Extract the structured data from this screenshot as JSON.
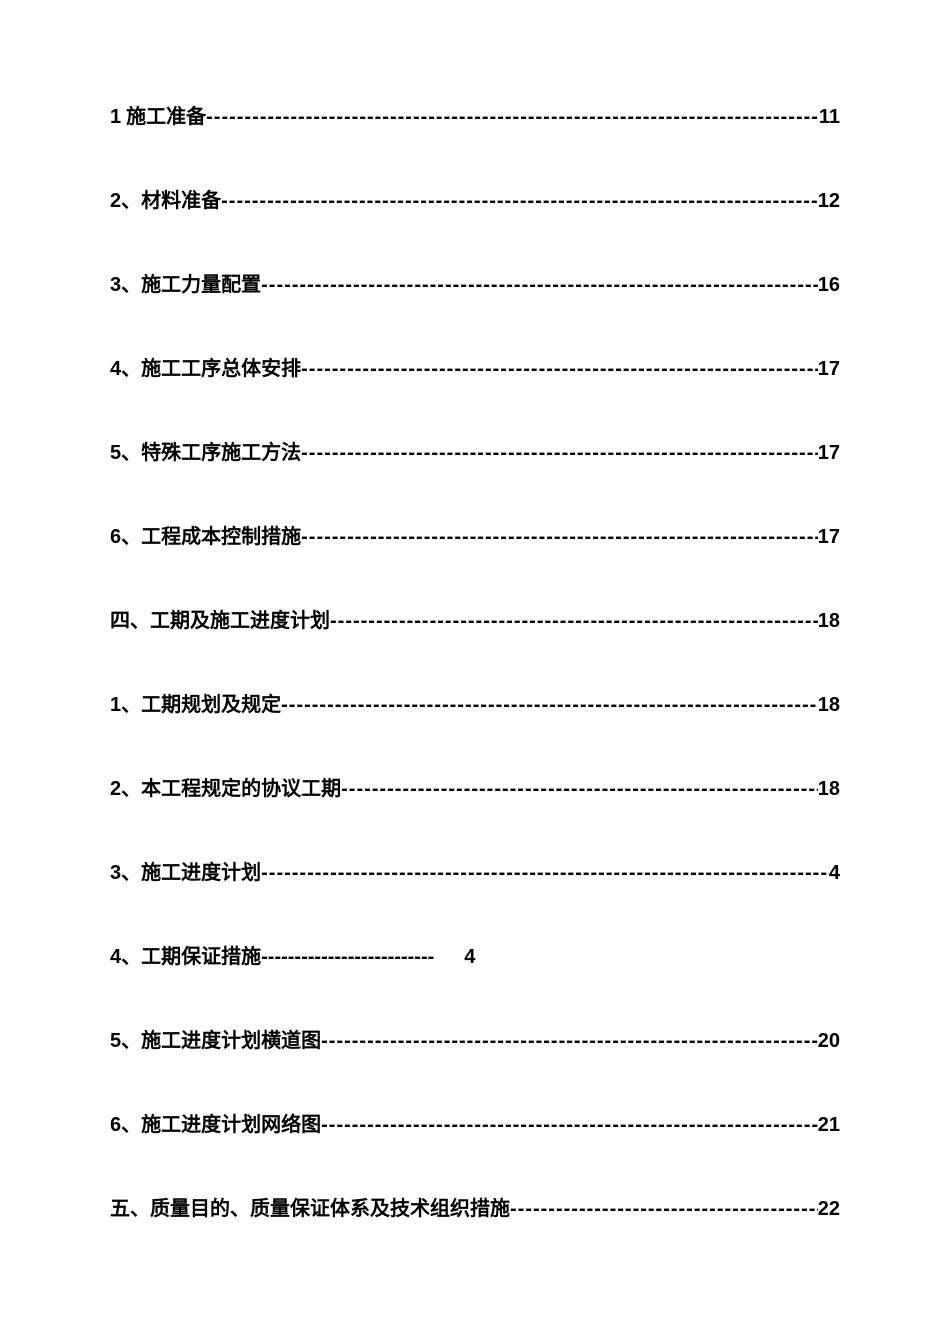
{
  "entries": [
    {
      "num": "1",
      "sep": " ",
      "title": "施工准备",
      "page": "11",
      "style": "full"
    },
    {
      "num": "2",
      "sep": "、",
      "title": "材料准备",
      "page": "12",
      "style": "full"
    },
    {
      "num": "3",
      "sep": "、",
      "title": "施工力量配置",
      "page": "16",
      "style": "full"
    },
    {
      "num": "4",
      "sep": "、",
      "title": "施工工序总体安排",
      "page": "17",
      "style": "full"
    },
    {
      "num": "5",
      "sep": "、",
      "title": "特殊工序施工方法",
      "page": "17",
      "style": "full"
    },
    {
      "num": "6",
      "sep": "、",
      "title": "工程成本控制措施",
      "page": "17",
      "style": "full"
    },
    {
      "num": "四",
      "sep": "、",
      "title": "工期及施工进度计划",
      "page": "18",
      "style": "full"
    },
    {
      "num": "1",
      "sep": "、",
      "title": "工期规划及规定",
      "page": "18",
      "style": "full"
    },
    {
      "num": "2",
      "sep": "、",
      "title": "本工程规定的协议工期",
      "page": "18",
      "style": "full"
    },
    {
      "num": "3",
      "sep": "、",
      "title": "施工进度计划",
      "page": "4",
      "style": "full"
    },
    {
      "num": "4",
      "sep": "、",
      "title": "工期保证措施",
      "page": "4",
      "style": "short"
    },
    {
      "num": "5",
      "sep": "、",
      "title": "施工进度计划横道图",
      "page": "20",
      "style": "full"
    },
    {
      "num": "6",
      "sep": "、",
      "title": "施工进度计划网络图",
      "page": "21",
      "style": "full"
    },
    {
      "num": "五",
      "sep": "、",
      "title": "质量目的、质量保证体系及技术组织措施",
      "page": "22",
      "style": "full"
    }
  ],
  "leader_char": "-",
  "colors": {
    "text": "#000000",
    "background": "#ffffff"
  },
  "font_size": 20
}
